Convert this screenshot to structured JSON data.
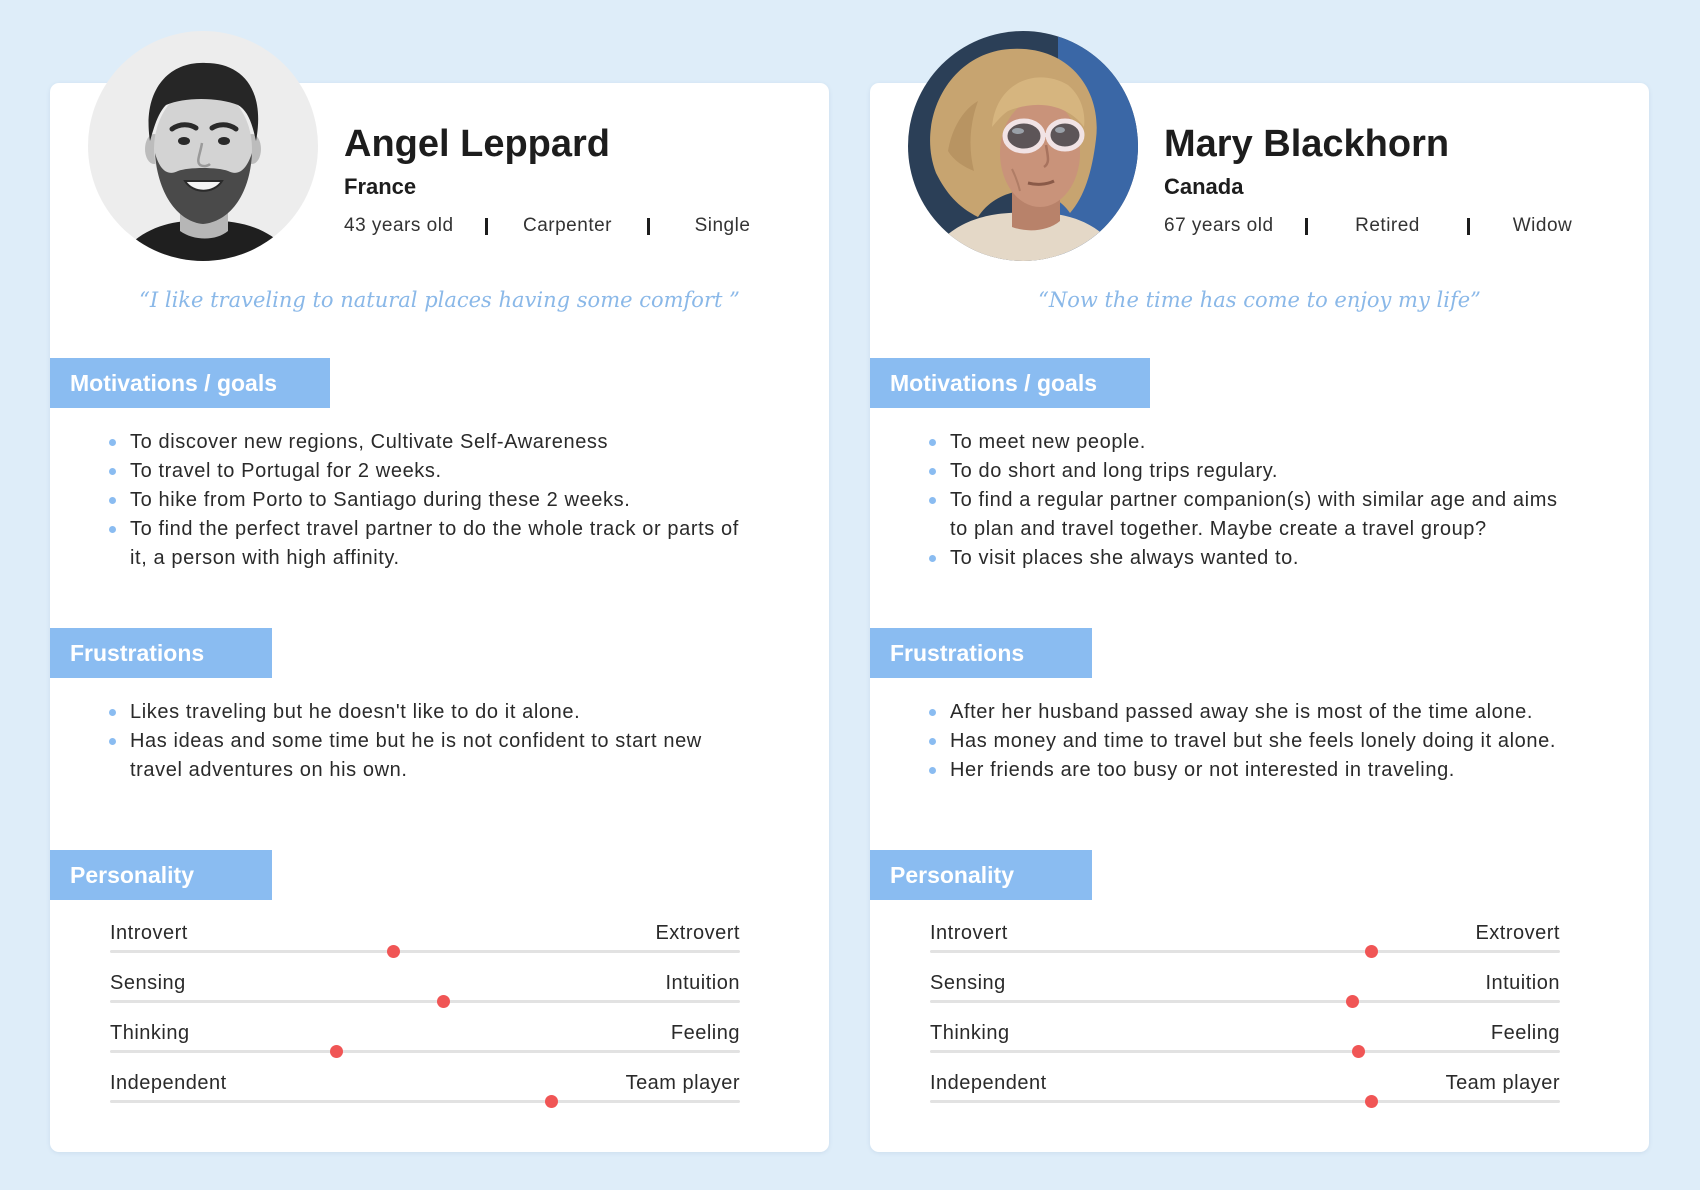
{
  "colors": {
    "background": "#deedf9",
    "accent": "#8abcf1",
    "quote": "#8ab8e8",
    "slider_dot": "#f05555",
    "track": "#e2e2e2"
  },
  "personas": [
    {
      "name": "Angel Leppard",
      "country": "France",
      "age": "43 years old",
      "occupation": "Carpenter",
      "status": "Single",
      "quote": "“I like traveling to natural places having some comfort ”",
      "motivations": {
        "title": "Motivations / goals",
        "items": [
          "To discover new regions, Cultivate Self-Awareness",
          "To travel to Portugal for 2 weeks.",
          "To hike from Porto to Santiago during these 2 weeks.",
          "To find the perfect travel partner to do the whole track or parts of it, a person with high affinity."
        ]
      },
      "frustrations": {
        "title": "Frustrations",
        "items": [
          "Likes traveling but he doesn't like to do it alone.",
          "Has ideas and some time but he is not confident to start new travel adventures on his own."
        ]
      },
      "personality": {
        "title": "Personality",
        "traits": [
          {
            "left": "Introvert",
            "right": "Extrovert",
            "value": 0.45
          },
          {
            "left": "Sensing",
            "right": "Intuition",
            "value": 0.53
          },
          {
            "left": "Thinking",
            "right": "Feeling",
            "value": 0.36
          },
          {
            "left": "Independent",
            "right": "Team player",
            "value": 0.7
          }
        ]
      }
    },
    {
      "name": "Mary Blackhorn",
      "country": "Canada",
      "age": "67 years old",
      "occupation": "Retired",
      "status": "Widow",
      "quote": "“Now the time has come to enjoy my life”",
      "motivations": {
        "title": "Motivations / goals",
        "items": [
          "To meet new people.",
          "To do short and long trips regulary.",
          "To find a regular partner companion(s) with similar age and aims to plan and travel together. Maybe create a travel group?",
          "To visit places she always wanted to."
        ]
      },
      "frustrations": {
        "title": "Frustrations",
        "items": [
          "After her husband passed away she is most of the time alone.",
          "Has money and time to travel but she feels lonely doing it alone.",
          "Her friends are too busy or not interested in traveling."
        ]
      },
      "personality": {
        "title": "Personality",
        "traits": [
          {
            "left": "Introvert",
            "right": "Extrovert",
            "value": 0.7
          },
          {
            "left": "Sensing",
            "right": "Intuition",
            "value": 0.67
          },
          {
            "left": "Thinking",
            "right": "Feeling",
            "value": 0.68
          },
          {
            "left": "Independent",
            "right": "Team player",
            "value": 0.7
          }
        ]
      }
    }
  ]
}
